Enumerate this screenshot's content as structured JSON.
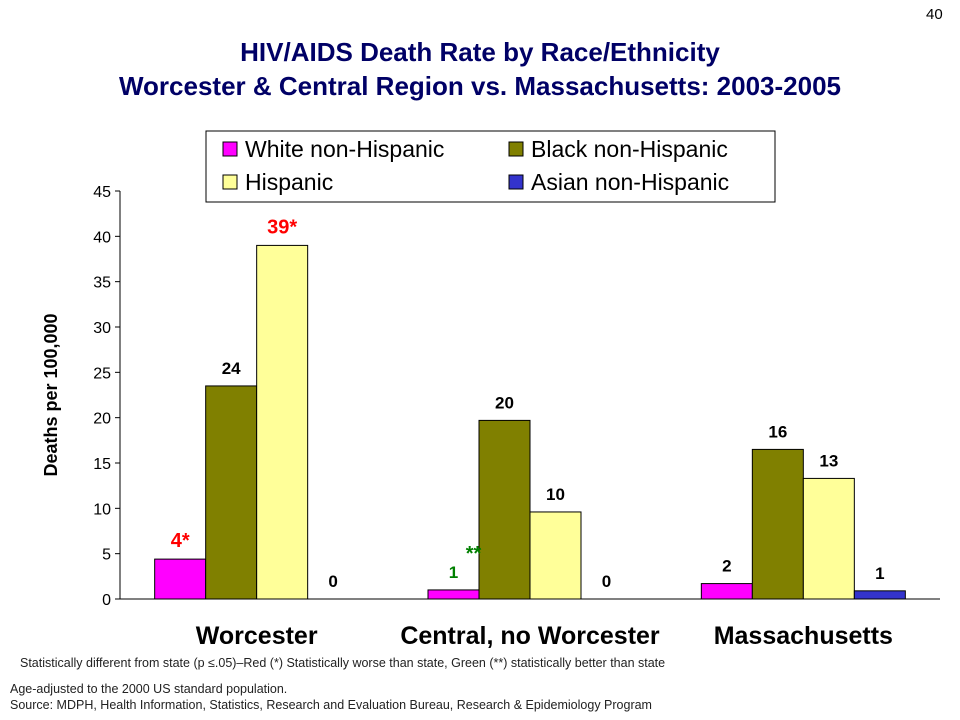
{
  "slide_number": "40",
  "title_line1": "HIV/AIDS Death Rate by Race/Ethnicity",
  "title_line2": "Worcester & Central Region vs. Massachusetts: 2003-2005",
  "chart_data": {
    "type": "bar",
    "categories": [
      "Worcester",
      "Central, no Worcester",
      "Massachusetts"
    ],
    "series": [
      {
        "name": "White non-Hispanic",
        "color": "#ff00ff",
        "values": [
          4.4,
          1.0,
          1.7
        ],
        "labels": [
          "4*",
          "1",
          "2"
        ],
        "label_colors": [
          "#ff0000",
          "#008000",
          "#000000"
        ]
      },
      {
        "name": "Black non-Hispanic",
        "color": "#808000",
        "values": [
          23.5,
          19.7,
          16.5
        ],
        "labels": [
          "24",
          "20",
          "16"
        ],
        "label_colors": [
          "#000000",
          "#000000",
          "#000000"
        ]
      },
      {
        "name": "Hispanic",
        "color": "#ffff99",
        "values": [
          39.0,
          9.6,
          13.3
        ],
        "labels": [
          "39*",
          "10",
          "13"
        ],
        "label_colors": [
          "#ff0000",
          "#000000",
          "#000000"
        ]
      },
      {
        "name": "Asian non-Hispanic",
        "color": "#3333cc",
        "values": [
          0,
          0,
          0.9
        ],
        "labels": [
          "0",
          "0",
          "1"
        ],
        "label_colors": [
          "#000000",
          "#000000",
          "#000000"
        ]
      }
    ],
    "extra_annotations": [
      {
        "text": "**",
        "category_index": 1,
        "series_index": 0,
        "color": "#008000"
      }
    ],
    "ylabel": "Deaths per 100,000",
    "ylim": [
      0,
      45
    ],
    "yticks": [
      0,
      5,
      10,
      15,
      20,
      25,
      30,
      35,
      40,
      45
    ],
    "legend_placement": "top-right"
  },
  "notes": {
    "significance": "Statistically different from state (p ≤.05)–Red (*) Statistically worse than state, Green (**) statistically better than state",
    "age_adjusted": "Age-adjusted to the 2000 US standard population.",
    "source": "Source:  MDPH, Health Information, Statistics, Research and Evaluation Bureau, Research & Epidemiology Program"
  }
}
